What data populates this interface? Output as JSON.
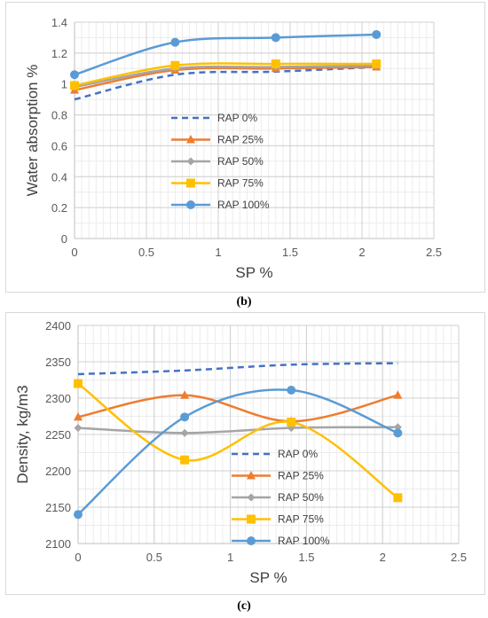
{
  "captions": [
    "(b)",
    "(c)"
  ],
  "chart_data": [
    {
      "type": "line",
      "xlabel": "SP %",
      "ylabel": "Water absorption %",
      "xlim": [
        0,
        2.5
      ],
      "ylim": [
        0,
        1.4
      ],
      "xticks": [
        0,
        0.5,
        1,
        1.5,
        2,
        2.5
      ],
      "yticks": [
        0,
        0.2,
        0.4,
        0.6,
        0.8,
        1,
        1.2,
        1.4
      ],
      "grid": true,
      "legend_position": "center-left",
      "x": [
        0,
        0.7,
        1.4,
        2.1
      ],
      "series": [
        {
          "name": "RAP 0%",
          "values": [
            0.9,
            1.06,
            1.08,
            1.11
          ],
          "color": "#4472c4",
          "dash": true,
          "marker": "none"
        },
        {
          "name": "RAP 25%",
          "values": [
            0.96,
            1.09,
            1.1,
            1.11
          ],
          "color": "#ed7d31",
          "dash": false,
          "marker": "triangle"
        },
        {
          "name": "RAP 50%",
          "values": [
            0.98,
            1.1,
            1.11,
            1.12
          ],
          "color": "#a5a5a5",
          "dash": false,
          "marker": "diamond"
        },
        {
          "name": "RAP 75%",
          "values": [
            0.99,
            1.12,
            1.13,
            1.13
          ],
          "color": "#ffc000",
          "dash": false,
          "marker": "square"
        },
        {
          "name": "RAP 100%",
          "values": [
            1.06,
            1.27,
            1.3,
            1.32
          ],
          "color": "#5b9bd5",
          "dash": false,
          "marker": "circle"
        }
      ]
    },
    {
      "type": "line",
      "xlabel": "SP %",
      "ylabel": "Density, kg/m3",
      "xlim": [
        0,
        2.5
      ],
      "ylim": [
        2100,
        2400
      ],
      "xticks": [
        0,
        0.5,
        1,
        1.5,
        2,
        2.5
      ],
      "yticks": [
        2100,
        2150,
        2200,
        2250,
        2300,
        2350,
        2400
      ],
      "grid": true,
      "legend_position": "center-right",
      "x": [
        0,
        0.7,
        1.4,
        2.1
      ],
      "series": [
        {
          "name": "RAP 0%",
          "values": [
            2333,
            2338,
            2346,
            2348
          ],
          "color": "#4472c4",
          "dash": true,
          "marker": "none"
        },
        {
          "name": "RAP 25%",
          "values": [
            2274,
            2304,
            2268,
            2304
          ],
          "color": "#ed7d31",
          "dash": false,
          "marker": "triangle"
        },
        {
          "name": "RAP 50%",
          "values": [
            2259,
            2252,
            2259,
            2260
          ],
          "color": "#a5a5a5",
          "dash": false,
          "marker": "diamond"
        },
        {
          "name": "RAP 75%",
          "values": [
            2320,
            2215,
            2267,
            2163
          ],
          "color": "#ffc000",
          "dash": false,
          "marker": "square"
        },
        {
          "name": "RAP 100%",
          "values": [
            2140,
            2274,
            2311,
            2252
          ],
          "color": "#5b9bd5",
          "dash": false,
          "marker": "circle"
        }
      ]
    }
  ]
}
